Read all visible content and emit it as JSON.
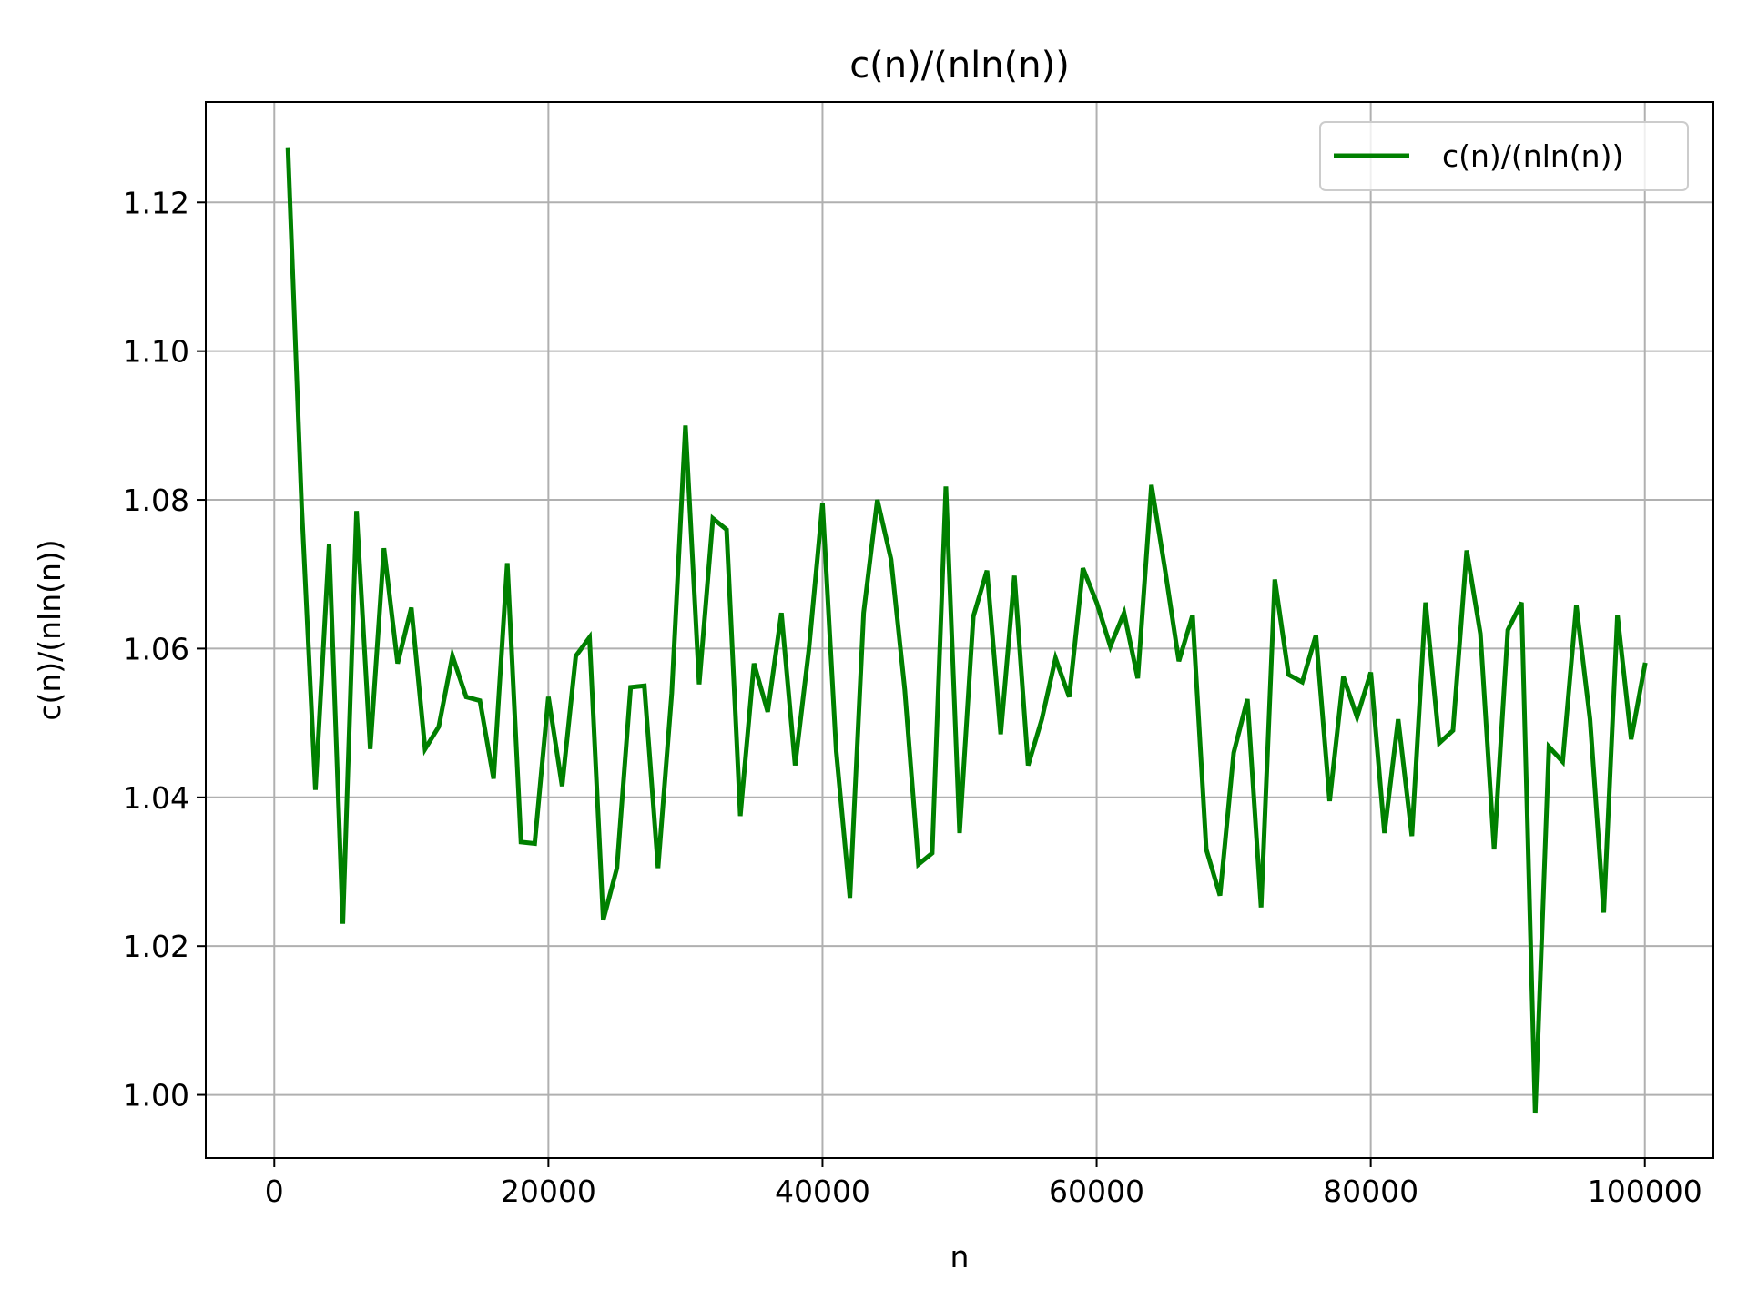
{
  "chart_data": {
    "type": "line",
    "title": "c(n)/(nln(n))",
    "xlabel": "n",
    "ylabel": "c(n)/(nln(n))",
    "xlim": [
      -5000,
      105000
    ],
    "ylim": [
      0.9915,
      1.1335
    ],
    "grid": true,
    "legend_position": "top-right",
    "xticks": [
      0,
      20000,
      40000,
      60000,
      80000,
      100000
    ],
    "xtick_labels": [
      "0",
      "20000",
      "40000",
      "60000",
      "80000",
      "100000"
    ],
    "yticks": [
      1.0,
      1.02,
      1.04,
      1.06,
      1.08,
      1.1,
      1.12
    ],
    "ytick_labels": [
      "1.00",
      "1.02",
      "1.04",
      "1.06",
      "1.08",
      "1.10",
      "1.12"
    ],
    "series": [
      {
        "name": "c(n)/(nln(n))",
        "color": "#008000",
        "x": [
          1000,
          2000,
          3000,
          4000,
          5000,
          6000,
          7000,
          8000,
          9000,
          10000,
          11000,
          12000,
          13000,
          14000,
          15000,
          16000,
          17000,
          18000,
          19000,
          20000,
          21000,
          22000,
          23000,
          24000,
          25000,
          26000,
          27000,
          28000,
          29000,
          30000,
          31000,
          32000,
          33000,
          34000,
          35000,
          36000,
          37000,
          38000,
          39000,
          40000,
          41000,
          42000,
          43000,
          44000,
          45000,
          46000,
          47000,
          48000,
          49000,
          50000,
          51000,
          52000,
          53000,
          54000,
          55000,
          56000,
          57000,
          58000,
          59000,
          60000,
          61000,
          62000,
          63000,
          64000,
          65000,
          66000,
          67000,
          68000,
          69000,
          70000,
          71000,
          72000,
          73000,
          74000,
          75000,
          76000,
          77000,
          78000,
          79000,
          80000,
          81000,
          82000,
          83000,
          84000,
          85000,
          86000,
          87000,
          88000,
          89000,
          90000,
          91000,
          92000,
          93000,
          94000,
          95000,
          96000,
          97000,
          98000,
          99000,
          100000
        ],
        "y": [
          1.127,
          1.079,
          1.041,
          1.074,
          1.023,
          1.0785,
          1.0465,
          1.0735,
          1.058,
          1.0655,
          1.0465,
          1.0495,
          1.059,
          1.0535,
          1.053,
          1.0425,
          1.0715,
          1.034,
          1.0338,
          1.0535,
          1.0415,
          1.059,
          1.0615,
          1.0235,
          1.0305,
          1.0548,
          1.055,
          1.0305,
          1.054,
          1.09,
          1.0552,
          1.0775,
          1.076,
          1.0375,
          1.058,
          1.0515,
          1.0648,
          1.0443,
          1.0598,
          1.0795,
          1.0462,
          1.0265,
          1.0648,
          1.08,
          1.072,
          1.0545,
          1.031,
          1.0325,
          1.0818,
          1.0352,
          1.0643,
          1.0705,
          1.0485,
          1.0698,
          1.0443,
          1.0505,
          1.0587,
          1.0535,
          1.0708,
          1.0662,
          1.0603,
          1.0648,
          1.056,
          1.082,
          1.0705,
          1.0583,
          1.0645,
          1.033,
          1.0268,
          1.046,
          1.0532,
          1.0252,
          1.0693,
          1.0565,
          1.0555,
          1.0618,
          1.0395,
          1.0562,
          1.0508,
          1.0568,
          1.0352,
          1.0505,
          1.0348,
          1.0662,
          1.0473,
          1.049,
          1.0732,
          1.062,
          1.033,
          1.0625,
          1.0662,
          0.9975,
          1.0468,
          1.0448,
          1.0658,
          1.0505,
          1.0245,
          1.0645,
          1.0478,
          1.0578
        ]
      }
    ]
  }
}
